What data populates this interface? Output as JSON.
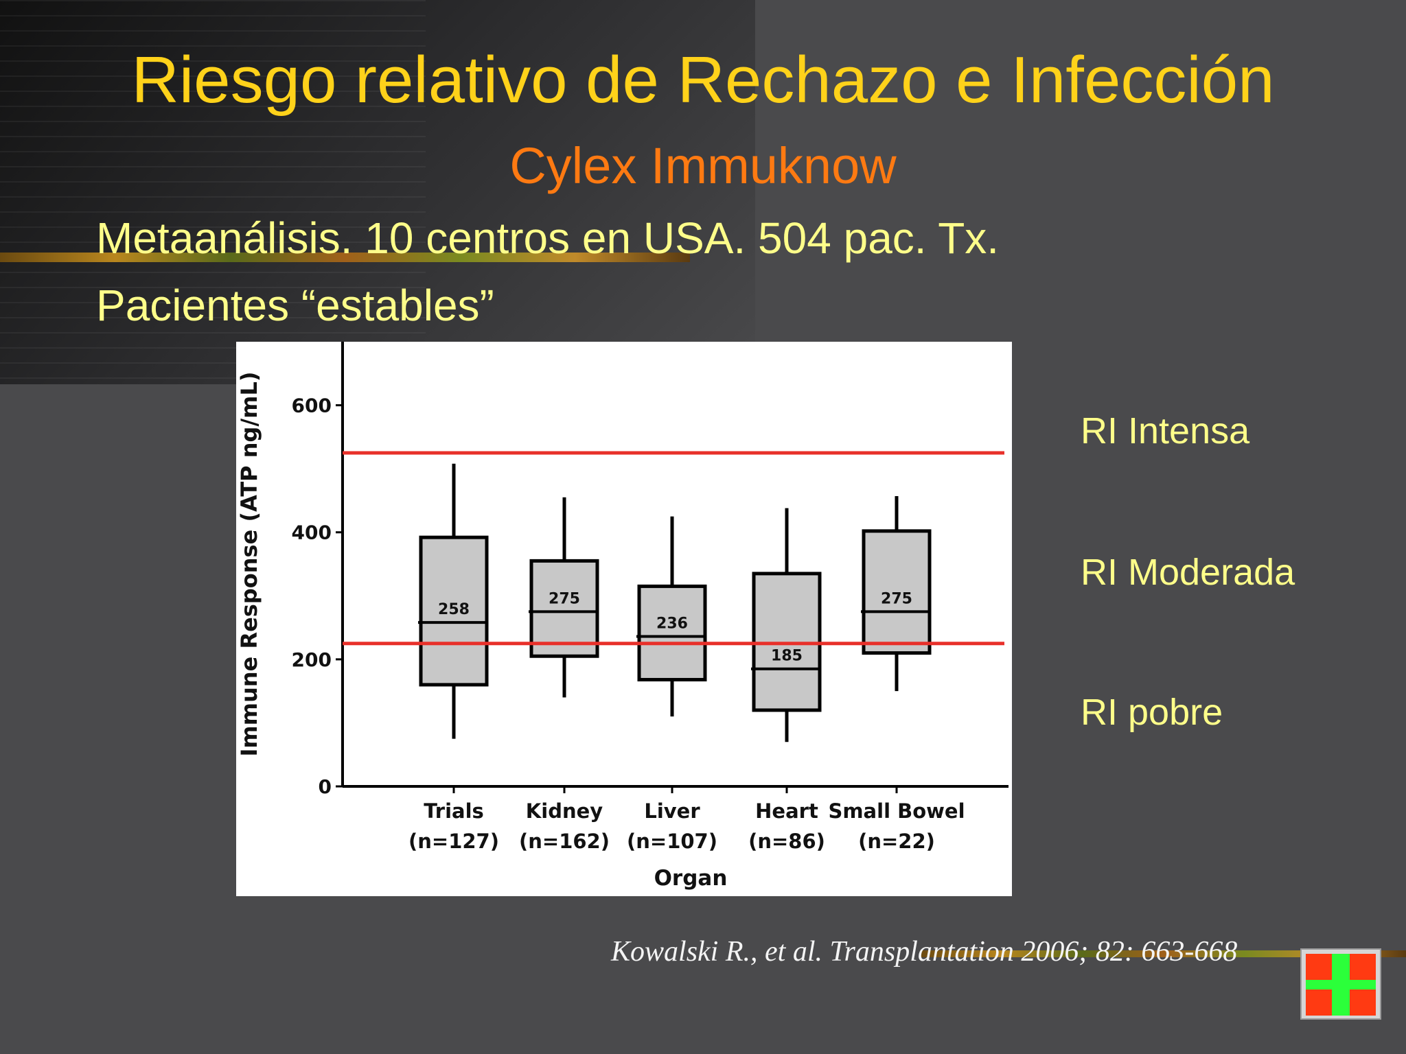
{
  "slide": {
    "title": "Riesgo relativo de Rechazo e Infección",
    "subtitle": "Cylex Immuknow",
    "lines": [
      "Metaanálisis. 10 centros en USA. 504 pac. Tx.",
      "Pacientes “estables”"
    ],
    "zones": [
      "RI Intensa",
      "RI Moderada",
      "RI pobre"
    ],
    "citation": "Kowalski R., et al. Transplantation 2006; 82: 663-668"
  },
  "chart_data": {
    "type": "boxplot",
    "title": "",
    "xlabel": "Organ",
    "ylabel": "Immune Response (ATP ng/mL)",
    "ylim": [
      0,
      700
    ],
    "yticks": [
      0,
      200,
      400,
      600
    ],
    "grid": false,
    "categories": [
      "Trials",
      "Kidney",
      "Liver",
      "Heart",
      "Small Bowel"
    ],
    "category_n": [
      "(n=127)",
      "(n=162)",
      "(n=107)",
      "(n=86)",
      "(n=22)"
    ],
    "boxes": [
      {
        "min": 75,
        "q1": 160,
        "median": 258,
        "q3": 392,
        "max": 508
      },
      {
        "min": 140,
        "q1": 205,
        "median": 275,
        "q3": 355,
        "max": 455
      },
      {
        "min": 110,
        "q1": 168,
        "median": 236,
        "q3": 315,
        "max": 425
      },
      {
        "min": 70,
        "q1": 120,
        "median": 185,
        "q3": 335,
        "max": 438
      },
      {
        "min": 150,
        "q1": 210,
        "median": 275,
        "q3": 402,
        "max": 457
      }
    ],
    "median_labels": [
      "258",
      "275",
      "236",
      "185",
      "275"
    ],
    "reference_lines": [
      525,
      225
    ],
    "colors": {
      "box_fill": "#c8c8c8",
      "reference_line": "#e8302a"
    }
  }
}
